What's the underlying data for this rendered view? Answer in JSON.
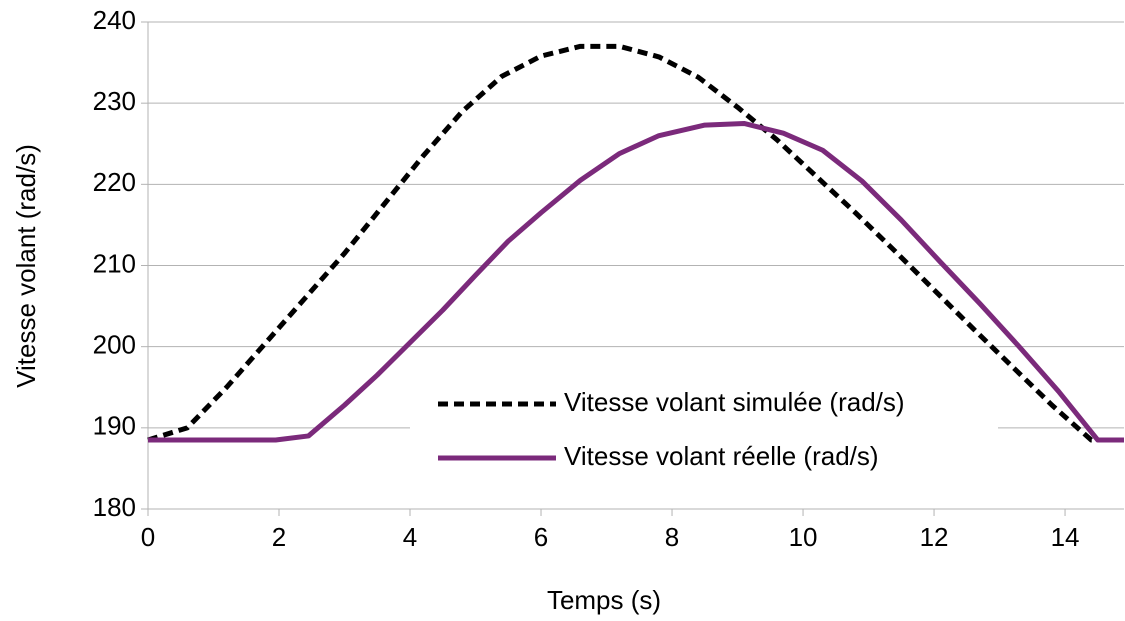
{
  "chart_data": {
    "type": "line",
    "xlabel": "Temps (s)",
    "ylabel": "Vitesse volant (rad/s)",
    "xlim": [
      0,
      14.9
    ],
    "xticks": [
      0,
      2,
      4,
      6,
      8,
      10,
      12,
      14
    ],
    "ylim": [
      180,
      240
    ],
    "yticks": [
      180,
      190,
      200,
      210,
      220,
      230,
      240
    ],
    "grid": true,
    "legend": "center",
    "series": [
      {
        "name": "Vitesse volant simulée (rad/s)",
        "color": "#000000",
        "line_style": "dashed",
        "x": [
          0,
          0.6,
          1.2,
          1.8,
          2.4,
          3,
          3.6,
          4.2,
          4.8,
          5.4,
          6,
          6.6,
          7.2,
          7.8,
          8.4,
          9,
          9.6,
          10.2,
          10.8,
          11.4,
          12,
          12.6,
          13.2,
          13.8,
          14.4,
          14.9
        ],
        "values": [
          188.5,
          190,
          195,
          200.5,
          206,
          211.5,
          217.5,
          223.5,
          229,
          233.3,
          235.8,
          237,
          237,
          235.7,
          233.2,
          229.5,
          225.5,
          221,
          216.5,
          211.8,
          207,
          202.2,
          197.5,
          192.8,
          188.5,
          188.5
        ]
      },
      {
        "name": "Vitesse volant réelle (rad/s)",
        "color": "#7b2a7b",
        "line_style": "solid",
        "x": [
          0,
          1.95,
          2.45,
          3,
          3.5,
          4,
          4.5,
          5,
          5.5,
          6,
          6.6,
          7.2,
          7.8,
          8.5,
          9.1,
          9.7,
          10.3,
          10.9,
          11.5,
          12.1,
          12.7,
          13.3,
          13.9,
          14.5,
          14.9
        ],
        "values": [
          188.5,
          188.5,
          189,
          192.8,
          196.5,
          200.5,
          204.5,
          208.8,
          213,
          216.5,
          220.5,
          223.8,
          226,
          227.3,
          227.5,
          226.3,
          224.2,
          220.4,
          215.6,
          210.4,
          205.3,
          200,
          194.5,
          188.5,
          188.5
        ]
      }
    ]
  }
}
